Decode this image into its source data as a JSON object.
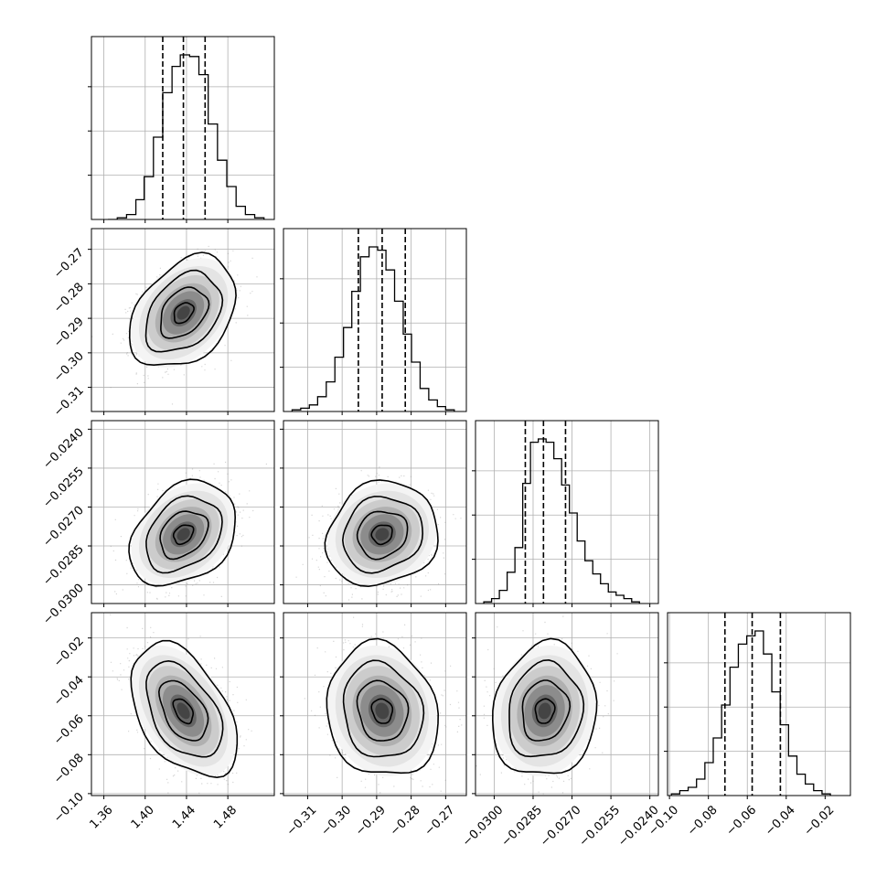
{
  "chart_data": {
    "type": "corner",
    "grid": true,
    "parameters": [
      {
        "range": [
          1.348,
          1.525
        ],
        "ticks": [
          1.36,
          1.4,
          1.44,
          1.48
        ],
        "tick_labels": [
          "1.36",
          "1.40",
          "1.44",
          "1.48"
        ],
        "quantiles": [
          1.417,
          1.437,
          1.458
        ],
        "hist_edges": [
          1.364,
          1.373,
          1.382,
          1.391,
          1.399,
          1.408,
          1.417,
          1.426,
          1.434,
          1.443,
          1.452,
          1.461,
          1.47,
          1.479,
          1.488,
          1.497,
          1.506,
          1.515
        ],
        "hist_heights": [
          0.0,
          0.01,
          0.03,
          0.12,
          0.26,
          0.5,
          0.77,
          0.93,
          1.0,
          0.99,
          0.88,
          0.58,
          0.36,
          0.2,
          0.08,
          0.03,
          0.01
        ]
      },
      {
        "range": [
          -0.317,
          -0.264
        ],
        "ticks": [
          -0.31,
          -0.3,
          -0.29,
          -0.28,
          -0.27
        ],
        "tick_labels": [
          "−0.31",
          "−0.30",
          "−0.29",
          "−0.28",
          "−0.27"
        ],
        "quantiles": [
          -0.2953,
          -0.2884,
          -0.2817
        ],
        "hist_edges": [
          -0.3145,
          -0.312,
          -0.3095,
          -0.3071,
          -0.3046,
          -0.3021,
          -0.2996,
          -0.2972,
          -0.2947,
          -0.2922,
          -0.2897,
          -0.2873,
          -0.2848,
          -0.2823,
          -0.2799,
          -0.2774,
          -0.2749,
          -0.2724,
          -0.27,
          -0.2675
        ],
        "hist_heights": [
          0.01,
          0.02,
          0.04,
          0.09,
          0.18,
          0.33,
          0.51,
          0.73,
          0.94,
          1.0,
          0.98,
          0.86,
          0.67,
          0.47,
          0.3,
          0.14,
          0.07,
          0.03,
          0.01
        ]
      },
      {
        "range": [
          -0.03072,
          -0.02367
        ],
        "ticks": [
          -0.03,
          -0.0285,
          -0.027,
          -0.0255,
          -0.024
        ],
        "tick_labels": [
          "−0.0300",
          "−0.0285",
          "−0.0270",
          "−0.0255",
          "−0.0240"
        ],
        "quantiles": [
          -0.0288,
          -0.0281,
          -0.02725
        ],
        "hist_edges": [
          -0.0304,
          -0.0301,
          -0.0298,
          -0.0295,
          -0.0292,
          -0.0289,
          -0.0286,
          -0.0283,
          -0.028,
          -0.0277,
          -0.0274,
          -0.0271,
          -0.0268,
          -0.0265,
          -0.0262,
          -0.0259,
          -0.0256,
          -0.0253,
          -0.025,
          -0.0247,
          -0.0244
        ],
        "hist_heights": [
          0.01,
          0.03,
          0.08,
          0.19,
          0.34,
          0.73,
          0.98,
          1.0,
          0.98,
          0.88,
          0.72,
          0.55,
          0.38,
          0.26,
          0.18,
          0.12,
          0.07,
          0.05,
          0.03,
          0.01
        ]
      },
      {
        "range": [
          -0.101,
          -0.007
        ],
        "ticks": [
          -0.1,
          -0.08,
          -0.06,
          -0.04,
          -0.02
        ],
        "tick_labels": [
          "−0.10",
          "−0.08",
          "−0.06",
          "−0.04",
          "−0.02"
        ],
        "quantiles": [
          -0.0715,
          -0.0575,
          -0.043
        ],
        "hist_edges": [
          -0.099,
          -0.0947,
          -0.0904,
          -0.0861,
          -0.0818,
          -0.0775,
          -0.0732,
          -0.0689,
          -0.0646,
          -0.0603,
          -0.056,
          -0.0517,
          -0.0474,
          -0.0431,
          -0.0388,
          -0.0345,
          -0.0302,
          -0.0259,
          -0.0216,
          -0.0173
        ],
        "hist_heights": [
          0.01,
          0.03,
          0.05,
          0.1,
          0.2,
          0.35,
          0.55,
          0.78,
          0.92,
          0.97,
          1.0,
          0.86,
          0.63,
          0.43,
          0.24,
          0.13,
          0.07,
          0.03,
          0.01
        ]
      }
    ],
    "joint": [
      {
        "row": 1,
        "col": 0,
        "mean": [
          1.437,
          -0.2884
        ],
        "sd": [
          0.021,
          0.0066
        ],
        "corr": 0.35
      },
      {
        "row": 2,
        "col": 0,
        "mean": [
          1.437,
          -0.02805
        ],
        "sd": [
          0.021,
          0.00082
        ],
        "corr": 0.3
      },
      {
        "row": 2,
        "col": 1,
        "mean": [
          -0.2884,
          -0.02805
        ],
        "sd": [
          0.0066,
          0.00082
        ],
        "corr": 0.12
      },
      {
        "row": 3,
        "col": 0,
        "mean": [
          1.437,
          -0.0575
        ],
        "sd": [
          0.021,
          0.014
        ],
        "corr": -0.45
      },
      {
        "row": 3,
        "col": 1,
        "mean": [
          -0.2884,
          -0.0575
        ],
        "sd": [
          0.0066,
          0.014
        ],
        "corr": -0.12
      },
      {
        "row": 3,
        "col": 2,
        "mean": [
          -0.02805,
          -0.0575
        ],
        "sd": [
          0.00082,
          0.014
        ],
        "corr": 0.1
      }
    ]
  }
}
